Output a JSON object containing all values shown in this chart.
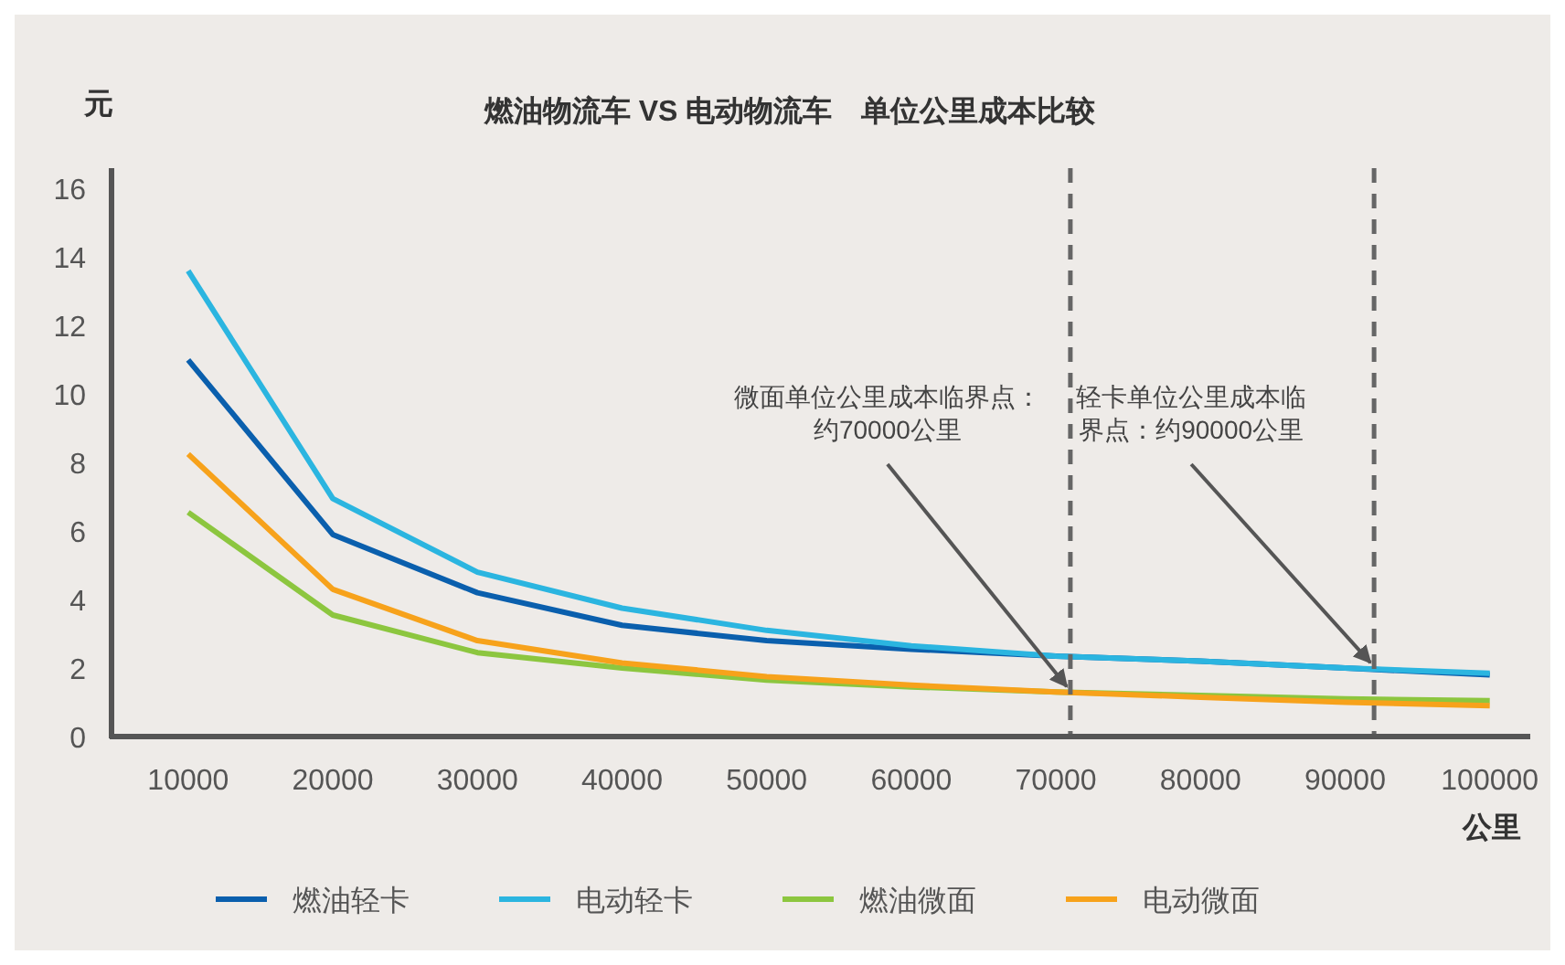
{
  "chart_data": {
    "type": "line",
    "title": "燃油物流车 VS 电动物流车　单位公里成本比较",
    "ylabel": "元",
    "xlabel": "公里",
    "x": [
      10000,
      20000,
      30000,
      40000,
      50000,
      60000,
      70000,
      80000,
      90000,
      100000
    ],
    "xlim": [
      4700,
      102800
    ],
    "xticks": [
      10000,
      20000,
      30000,
      40000,
      50000,
      60000,
      70000,
      80000,
      90000,
      100000
    ],
    "ylim": [
      0,
      16.6
    ],
    "yticks": [
      0,
      2,
      4,
      6,
      8,
      10,
      12,
      14,
      16
    ],
    "series": [
      {
        "name": "燃油轻卡",
        "color": "#0a5fad",
        "values": [
          11.0,
          5.9,
          4.2,
          3.25,
          2.8,
          2.55,
          2.35,
          2.2,
          2.0,
          1.8
        ]
      },
      {
        "name": "电动轻卡",
        "color": "#2bb5e0",
        "values": [
          13.6,
          6.95,
          4.8,
          3.75,
          3.1,
          2.65,
          2.35,
          2.2,
          2.0,
          1.85
        ]
      },
      {
        "name": "燃油微面",
        "color": "#8cc63f",
        "values": [
          6.55,
          3.55,
          2.45,
          2.0,
          1.65,
          1.45,
          1.3,
          1.2,
          1.1,
          1.05
        ]
      },
      {
        "name": "电动微面",
        "color": "#f7a21b",
        "values": [
          8.25,
          4.3,
          2.8,
          2.15,
          1.75,
          1.5,
          1.3,
          1.15,
          1.0,
          0.9
        ]
      }
    ],
    "ref_lines": [
      {
        "axis": "x",
        "value": 71000,
        "color": "#666666",
        "line_style": "dashed"
      },
      {
        "axis": "x",
        "value": 92000,
        "color": "#666666",
        "line_style": "dashed"
      }
    ],
    "annotations": [
      {
        "text": "微面单位公里成本临界点：约70000公里",
        "x": 71000,
        "y": 1.3
      },
      {
        "text": "轻卡单位公里成本临界点：约90000公里",
        "x": 92000,
        "y": 2.0
      }
    ],
    "grid": false,
    "legend": "bottom",
    "marker": "none",
    "line_style": "solid"
  }
}
